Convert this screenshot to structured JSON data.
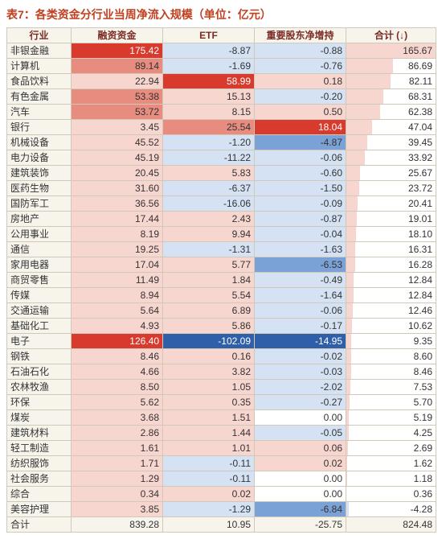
{
  "caption": "表7：各类资金分行业当周净流入规模（单位：亿元）",
  "header_bg": "#f7f4ec",
  "header_color": "#7b2b24",
  "border_color": "#d0c8b8",
  "pos_color_strong": "#d83a2e",
  "pos_color_mid": "#e88c80",
  "pos_color_light": "#f7d6cf",
  "neg_color_strong": "#2e5fa8",
  "neg_color_mid": "#7aa2d6",
  "neg_color_light": "#d4e2f4",
  "white_text": "#ffffff",
  "dark_text": "#333333",
  "columns": [
    {
      "key": "industry",
      "label": "行业"
    },
    {
      "key": "margin",
      "label": "融资资金",
      "scale_pos": 175.42,
      "scale_neg": 0,
      "heat": true
    },
    {
      "key": "etf",
      "label": "ETF",
      "scale_pos": 58.99,
      "scale_neg": 102.09,
      "heat": true
    },
    {
      "key": "major",
      "label": "重要股东净增持",
      "scale_pos": 18.04,
      "scale_neg": 14.95,
      "heat": true
    },
    {
      "key": "total",
      "label": "合计 (↓)",
      "scale_pos": 165.67,
      "scale_neg": 4.28,
      "heat": false
    }
  ],
  "rows": [
    {
      "industry": "非银金融",
      "margin": 175.42,
      "etf": -8.87,
      "major": -0.88,
      "total": 165.67
    },
    {
      "industry": "计算机",
      "margin": 89.14,
      "etf": -1.69,
      "major": -0.76,
      "total": 86.69
    },
    {
      "industry": "食品饮料",
      "margin": 22.94,
      "etf": 58.99,
      "major": 0.18,
      "total": 82.11
    },
    {
      "industry": "有色金属",
      "margin": 53.38,
      "etf": 15.13,
      "major": -0.2,
      "total": 68.31
    },
    {
      "industry": "汽车",
      "margin": 53.72,
      "etf": 8.15,
      "major": 0.5,
      "total": 62.38
    },
    {
      "industry": "银行",
      "margin": 3.45,
      "etf": 25.54,
      "major": 18.04,
      "total": 47.04
    },
    {
      "industry": "机械设备",
      "margin": 45.52,
      "etf": -1.2,
      "major": -4.87,
      "total": 39.45
    },
    {
      "industry": "电力设备",
      "margin": 45.19,
      "etf": -11.22,
      "major": -0.06,
      "total": 33.92
    },
    {
      "industry": "建筑装饰",
      "margin": 20.45,
      "etf": 5.83,
      "major": -0.6,
      "total": 25.67
    },
    {
      "industry": "医药生物",
      "margin": 31.6,
      "etf": -6.37,
      "major": -1.5,
      "total": 23.72
    },
    {
      "industry": "国防军工",
      "margin": 36.56,
      "etf": -16.06,
      "major": -0.09,
      "total": 20.41
    },
    {
      "industry": "房地产",
      "margin": 17.44,
      "etf": 2.43,
      "major": -0.87,
      "total": 19.01
    },
    {
      "industry": "公用事业",
      "margin": 8.19,
      "etf": 9.94,
      "major": -0.04,
      "total": 18.1
    },
    {
      "industry": "通信",
      "margin": 19.25,
      "etf": -1.31,
      "major": -1.63,
      "total": 16.31
    },
    {
      "industry": "家用电器",
      "margin": 17.04,
      "etf": 5.77,
      "major": -6.53,
      "total": 16.28
    },
    {
      "industry": "商贸零售",
      "margin": 11.49,
      "etf": 1.84,
      "major": -0.49,
      "total": 12.84
    },
    {
      "industry": "传媒",
      "margin": 8.94,
      "etf": 5.54,
      "major": -1.64,
      "total": 12.84
    },
    {
      "industry": "交通运输",
      "margin": 5.64,
      "etf": 6.89,
      "major": -0.06,
      "total": 12.46
    },
    {
      "industry": "基础化工",
      "margin": 4.93,
      "etf": 5.86,
      "major": -0.17,
      "total": 10.62
    },
    {
      "industry": "电子",
      "margin": 126.4,
      "etf": -102.09,
      "major": -14.95,
      "total": 9.35
    },
    {
      "industry": "钢铁",
      "margin": 8.46,
      "etf": 0.16,
      "major": -0.02,
      "total": 8.6
    },
    {
      "industry": "石油石化",
      "margin": 4.66,
      "etf": 3.82,
      "major": -0.03,
      "total": 8.46
    },
    {
      "industry": "农林牧渔",
      "margin": 8.5,
      "etf": 1.05,
      "major": -2.02,
      "total": 7.53
    },
    {
      "industry": "环保",
      "margin": 5.62,
      "etf": 0.35,
      "major": -0.27,
      "total": 5.7
    },
    {
      "industry": "煤炭",
      "margin": 3.68,
      "etf": 1.51,
      "major": 0.0,
      "total": 5.19
    },
    {
      "industry": "建筑材料",
      "margin": 2.86,
      "etf": 1.44,
      "major": -0.05,
      "total": 4.25
    },
    {
      "industry": "轻工制造",
      "margin": 1.61,
      "etf": 1.01,
      "major": 0.06,
      "total": 2.69
    },
    {
      "industry": "纺织服饰",
      "margin": 1.71,
      "etf": -0.11,
      "major": 0.02,
      "total": 1.62
    },
    {
      "industry": "社会服务",
      "margin": 1.29,
      "etf": -0.11,
      "major": 0.0,
      "total": 1.18
    },
    {
      "industry": "综合",
      "margin": 0.34,
      "etf": 0.02,
      "major": 0.0,
      "total": 0.36
    },
    {
      "industry": "美容护理",
      "margin": 3.85,
      "etf": -1.29,
      "major": -6.84,
      "total": -4.28
    }
  ],
  "total_row": {
    "industry": "合计",
    "margin": 839.28,
    "etf": 10.95,
    "major": -25.75,
    "total": 824.48
  }
}
